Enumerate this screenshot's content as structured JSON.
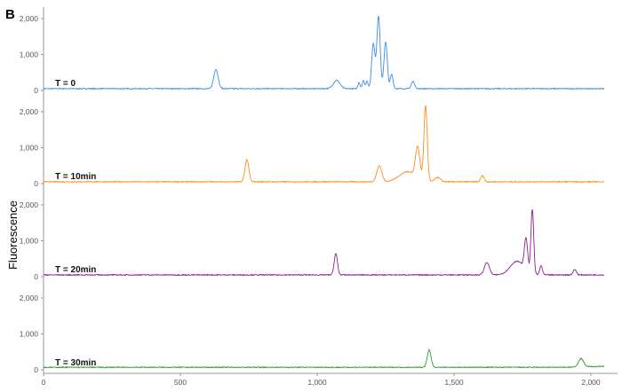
{
  "figure_label": "B",
  "chart_data": {
    "type": "line",
    "ylabel": "Fluorescence",
    "xlabel": "",
    "xlim": [
      0,
      2050
    ],
    "x_ticks": [
      0,
      500,
      1000,
      1500,
      2000
    ],
    "x_tick_labels": [
      "0",
      "500",
      "1,000",
      "1,500",
      "2,000"
    ],
    "y_ticks": [
      0,
      1000,
      2000
    ],
    "y_tick_labels": [
      "0",
      "1,000",
      "2,000"
    ],
    "ylim": [
      0,
      2000
    ],
    "grid": false,
    "panels": [
      {
        "label": "T = 0",
        "color": "#3a8ee6",
        "baseline": 50,
        "peaks": [
          [
            630,
            540,
            8
          ],
          [
            1071,
            230,
            12
          ],
          [
            1153,
            170,
            4
          ],
          [
            1169,
            230,
            4
          ],
          [
            1182,
            200,
            4
          ],
          [
            1205,
            1250,
            6
          ],
          [
            1224,
            2020,
            6
          ],
          [
            1250,
            1300,
            6
          ],
          [
            1272,
            400,
            5
          ],
          [
            1350,
            200,
            6
          ]
        ]
      },
      {
        "label": "T = 10min",
        "color": "#ff8c1a",
        "baseline": 50,
        "peaks": [
          [
            743,
            620,
            7
          ],
          [
            1227,
            440,
            9
          ],
          [
            1330,
            280,
            30
          ],
          [
            1367,
            860,
            8
          ],
          [
            1396,
            2100,
            6
          ],
          [
            1440,
            120,
            10
          ],
          [
            1604,
            170,
            6
          ]
        ]
      },
      {
        "label": "T = 20min",
        "color": "#8e1f8e",
        "baseline": 50,
        "peaks": [
          [
            1068,
            590,
            6
          ],
          [
            1620,
            350,
            9
          ],
          [
            1730,
            380,
            25
          ],
          [
            1763,
            880,
            6
          ],
          [
            1786,
            1810,
            5
          ],
          [
            1818,
            250,
            5
          ],
          [
            1941,
            150,
            6
          ]
        ]
      },
      {
        "label": "T = 30min",
        "color": "#2e9a2e",
        "baseline": 70,
        "peaks": [
          [
            1409,
            480,
            7
          ],
          [
            1964,
            230,
            9
          ]
        ]
      }
    ]
  }
}
